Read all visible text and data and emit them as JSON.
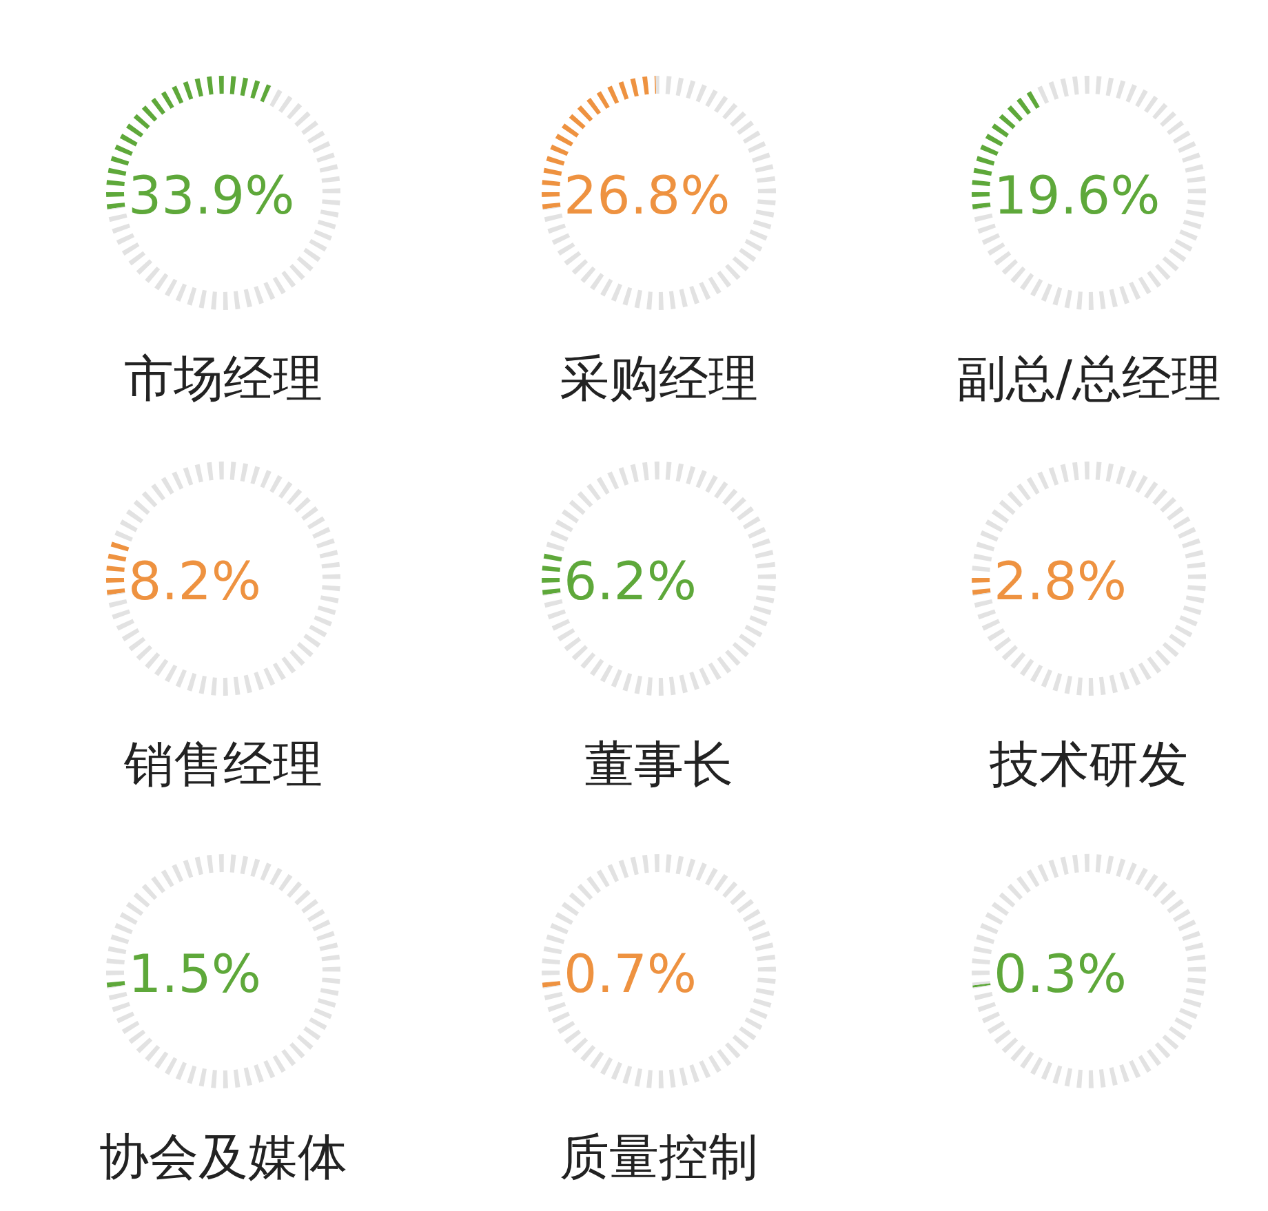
{
  "chart_data": [
    {
      "type": "donut",
      "title": "市场经理",
      "categories": [
        null,
        null
      ],
      "values": [
        33.9,
        66.1
      ],
      "colors": [
        "#5ea83a",
        "#e2e2e2"
      ],
      "value_labels": [
        "33.9%",
        null
      ]
    },
    {
      "type": "donut",
      "title": "采购经理",
      "categories": [
        null,
        null
      ],
      "values": [
        26.8,
        73.2
      ],
      "colors": [
        "#ee9240",
        "#e2e2e2"
      ],
      "value_labels": [
        "26.8%",
        null
      ]
    },
    {
      "type": "donut",
      "title": "副总/总经理",
      "categories": [
        null,
        null
      ],
      "values": [
        19.6,
        80.4
      ],
      "colors": [
        "#5ea83a",
        "#e2e2e2"
      ],
      "value_labels": [
        "19.6%",
        null
      ]
    },
    {
      "type": "donut",
      "title": "销售经理",
      "categories": [
        null,
        null
      ],
      "values": [
        8.2,
        91.8
      ],
      "colors": [
        "#ee9240",
        "#e2e2e2"
      ],
      "value_labels": [
        "8.2%",
        null
      ]
    },
    {
      "type": "donut",
      "title": "董事长",
      "categories": [
        null,
        null
      ],
      "values": [
        6.2,
        93.8
      ],
      "colors": [
        "#5ea83a",
        "#e2e2e2"
      ],
      "value_labels": [
        "6.2%",
        null
      ]
    },
    {
      "type": "donut",
      "title": "技术研发",
      "categories": [
        null,
        null
      ],
      "values": [
        2.8,
        97.2
      ],
      "colors": [
        "#ee9240",
        "#e2e2e2"
      ],
      "value_labels": [
        "2.8%",
        null
      ]
    },
    {
      "type": "donut",
      "title": "协会及媒体",
      "categories": [
        null,
        null
      ],
      "values": [
        1.5,
        98.5
      ],
      "colors": [
        "#5ea83a",
        "#e2e2e2"
      ],
      "value_labels": [
        "1.5%",
        null
      ]
    },
    {
      "type": "donut",
      "title": "质量控制",
      "categories": [
        null,
        null
      ],
      "values": [
        0.7,
        99.3
      ],
      "colors": [
        "#ee9240",
        "#e2e2e2"
      ],
      "value_labels": [
        "0.7%",
        null
      ]
    },
    {
      "type": "donut",
      "categories": [
        null,
        null
      ],
      "values": [
        0.3,
        99.7
      ],
      "colors": [
        "#5ea83a",
        "#e2e2e2"
      ],
      "value_labels": [
        "0.3%",
        null
      ]
    }
  ]
}
